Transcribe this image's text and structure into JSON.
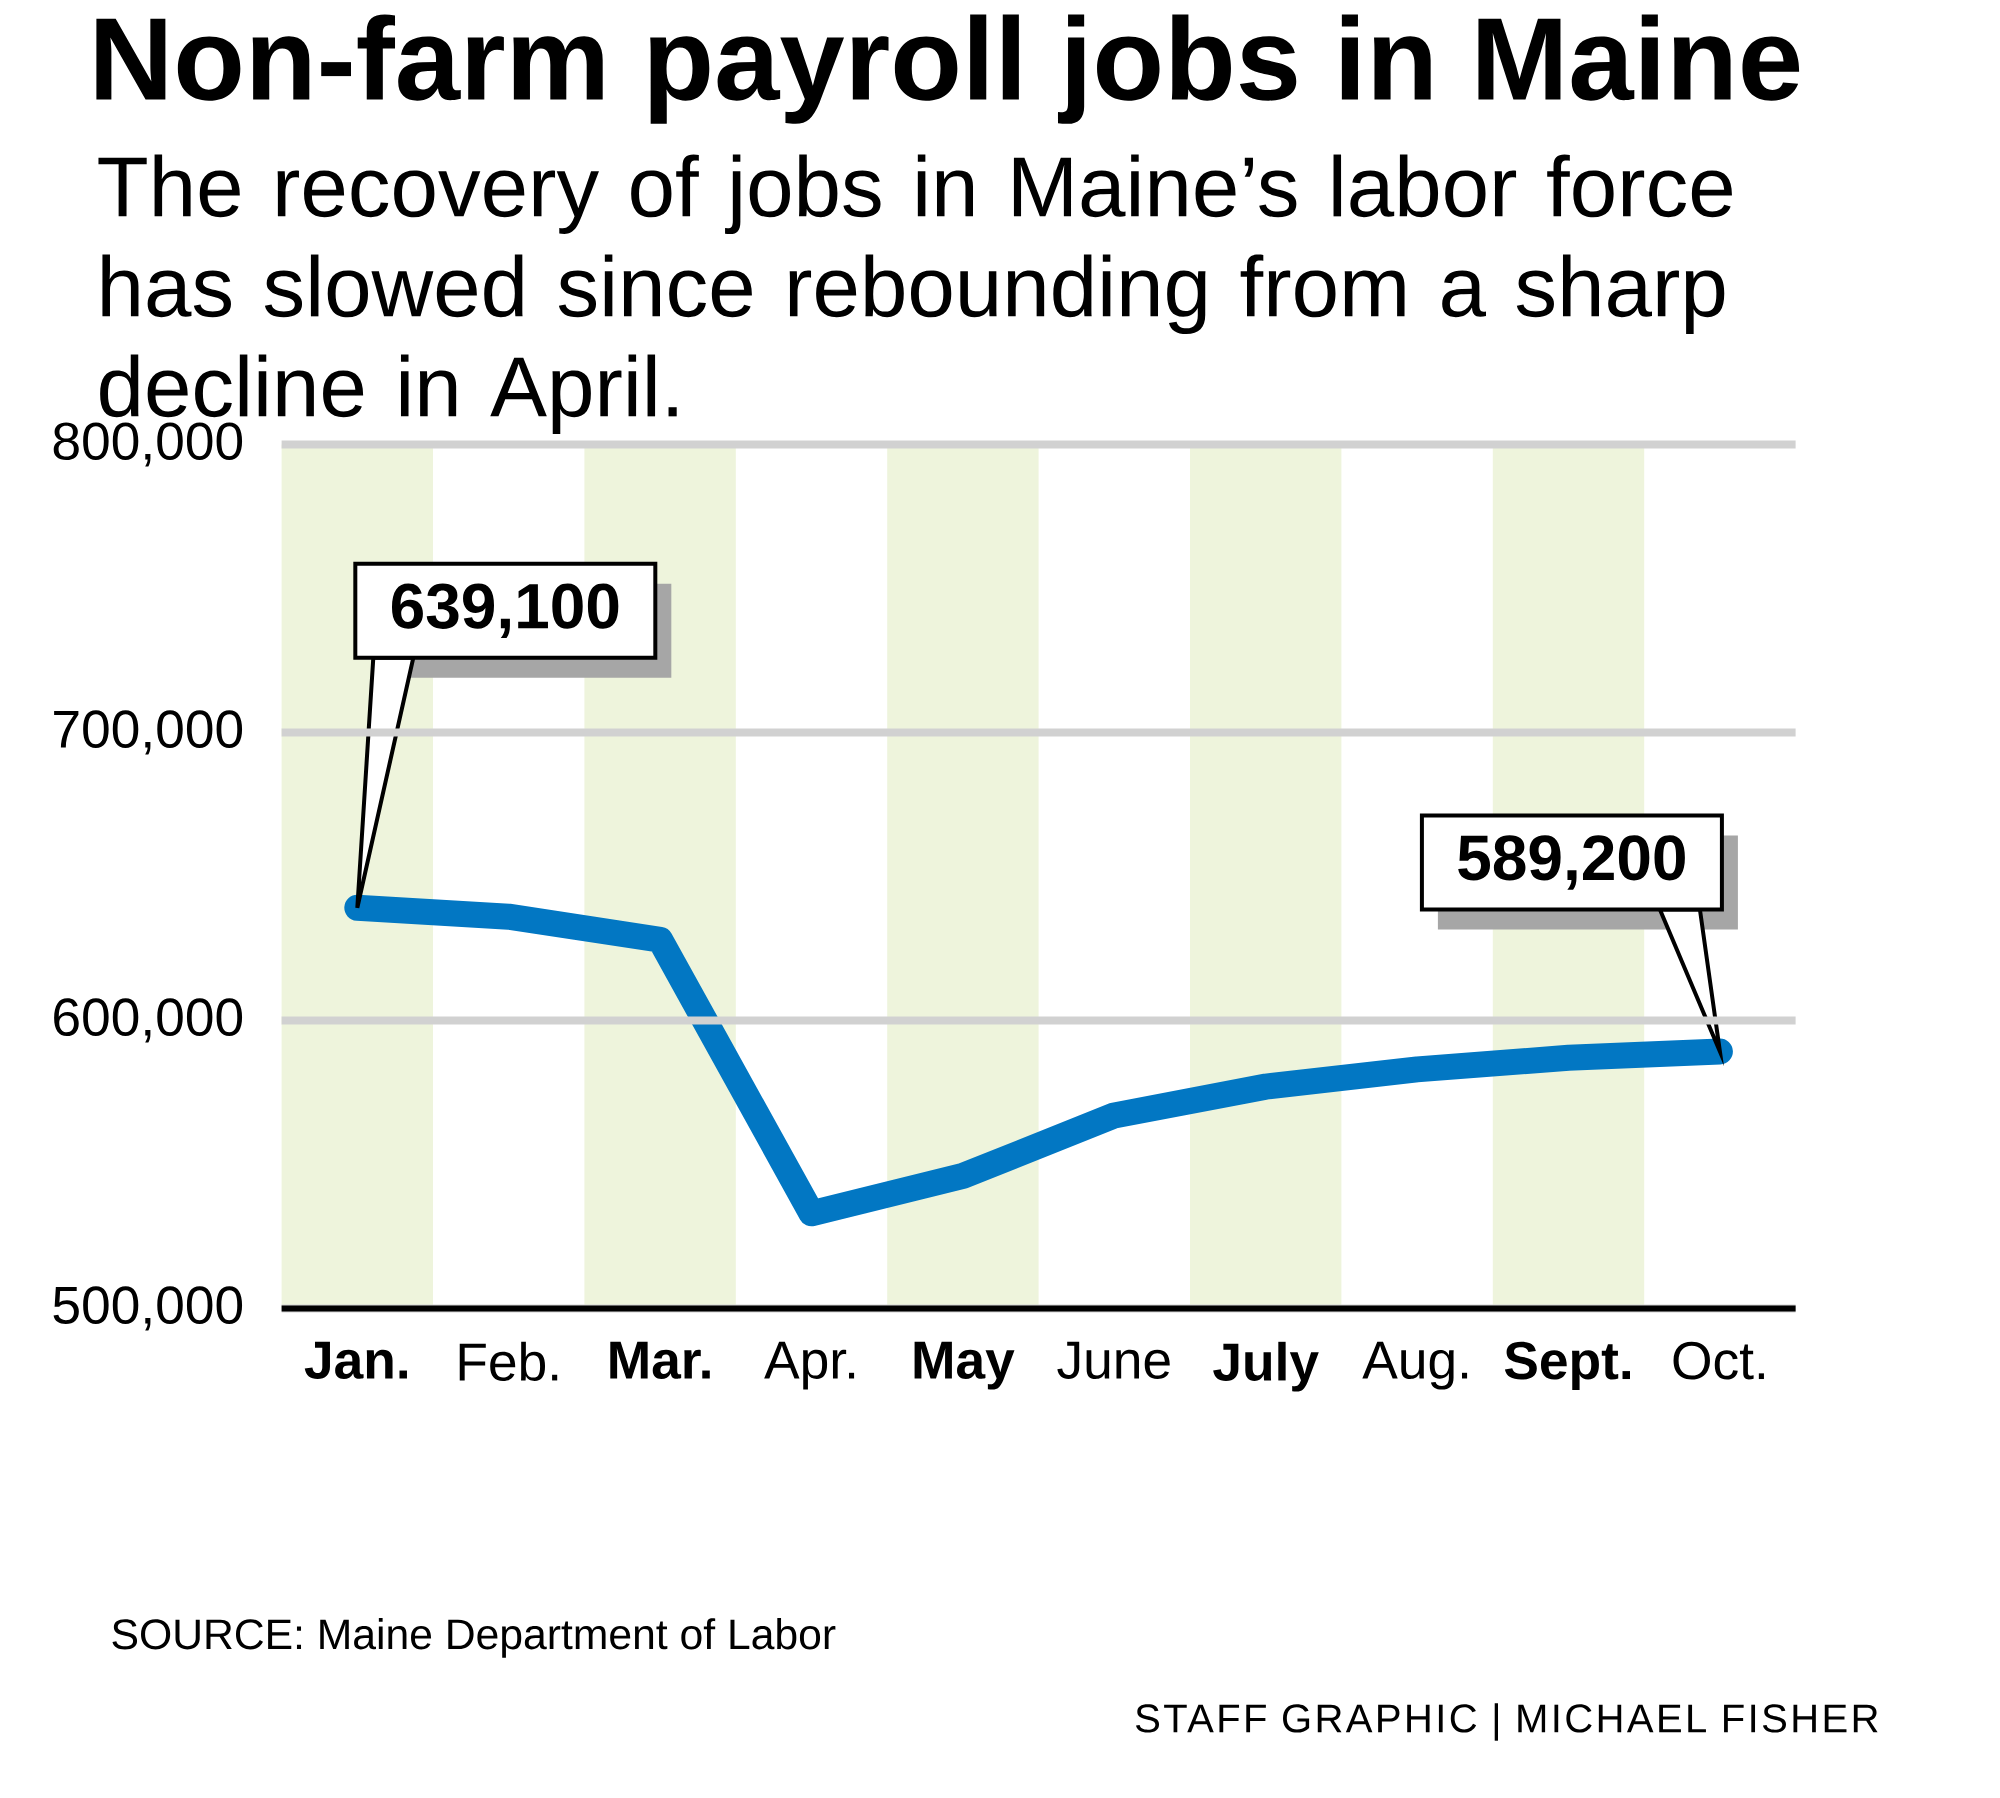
{
  "chart_data": {
    "type": "line",
    "title": "Non-farm payroll jobs in Maine",
    "subtitle": "The recovery of jobs in Maine’s labor force has slowed since rebounding from a sharp decline in April.",
    "categories": [
      "Jan.",
      "Feb.",
      "Mar.",
      "Apr.",
      "May",
      "June",
      "July",
      "Aug.",
      "Sept.",
      "Oct."
    ],
    "values": [
      639100,
      636000,
      628000,
      533000,
      546000,
      567000,
      577000,
      583000,
      587000,
      589200
    ],
    "value_labels": [
      "639,100",
      null,
      null,
      null,
      null,
      null,
      null,
      null,
      null,
      "589,200"
    ],
    "color": "#0277c3",
    "ylim": [
      500000,
      800000
    ],
    "yticks": [
      {
        "value": 500000,
        "label": "500,000"
      },
      {
        "value": 600000,
        "label": "600,000"
      },
      {
        "value": 700000,
        "label": "700,000"
      },
      {
        "value": 800000,
        "label": "800,000"
      }
    ],
    "grid": "y",
    "bands": [
      {
        "axis": "x",
        "from": "Jan.",
        "to": "Jan.",
        "color": "#eef4dc"
      },
      {
        "axis": "x",
        "from": "Mar.",
        "to": "Mar.",
        "color": "#eef4dc"
      },
      {
        "axis": "x",
        "from": "May",
        "to": "May",
        "color": "#eef4dc"
      },
      {
        "axis": "x",
        "from": "July",
        "to": "July",
        "color": "#eef4dc"
      },
      {
        "axis": "x",
        "from": "Sept.",
        "to": "Sept.",
        "color": "#eef4dc"
      }
    ],
    "annotations": [
      "SOURCE: Maine Department of Labor",
      "STAFF GRAPHIC | MICHAEL FISHER"
    ]
  }
}
